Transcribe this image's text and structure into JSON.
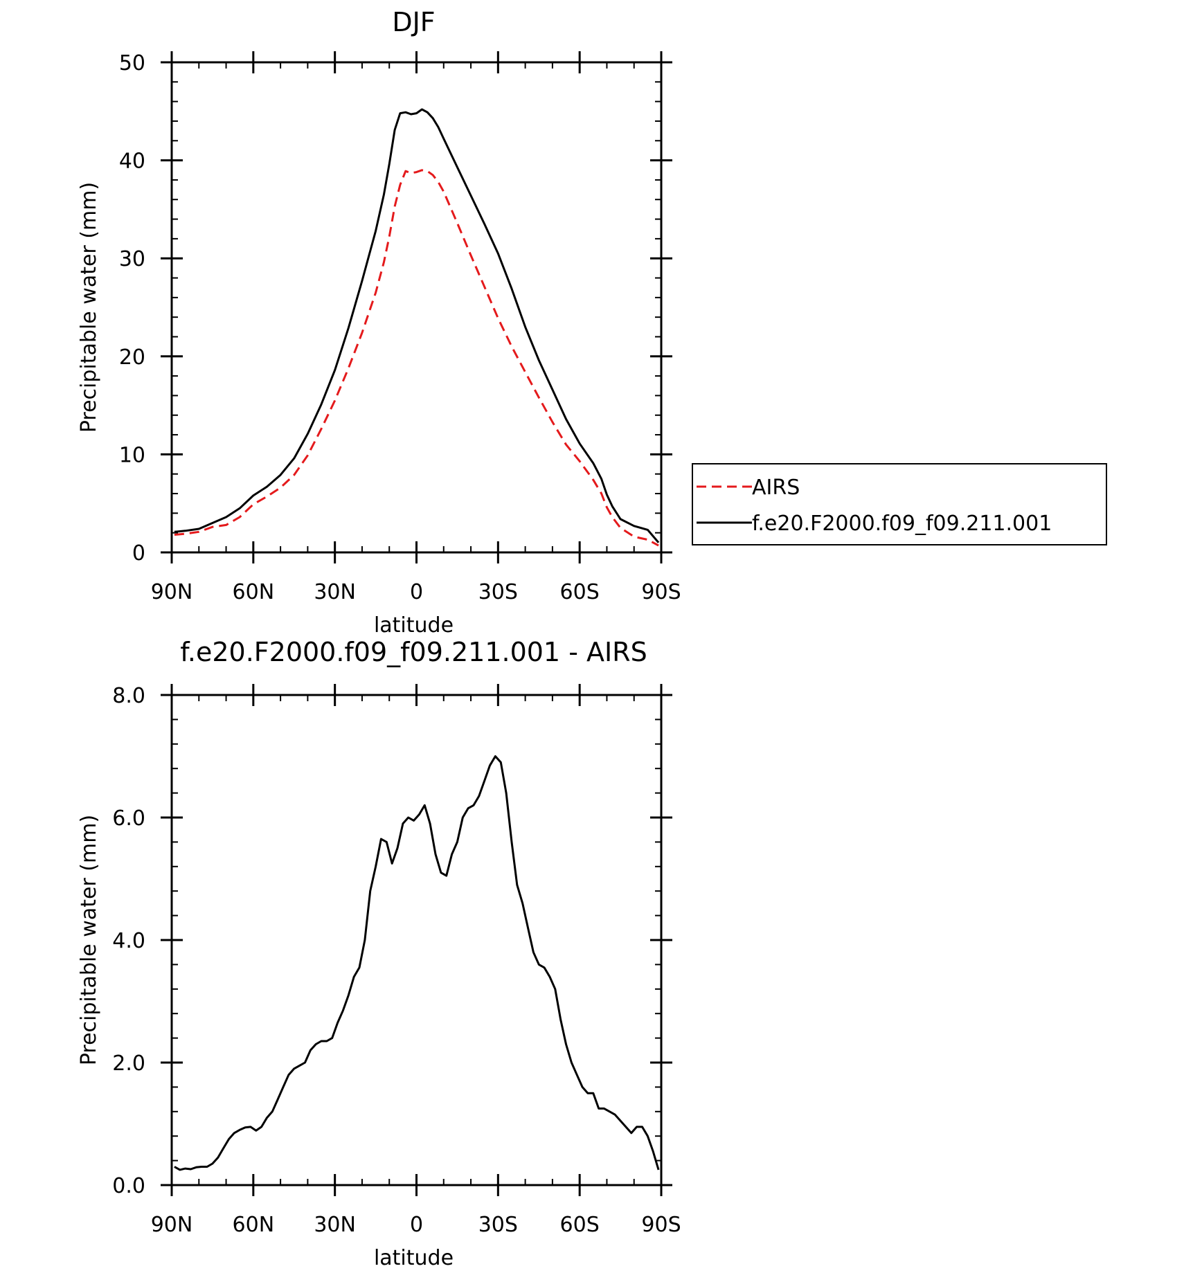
{
  "colors": {
    "airs": "#e41a1c",
    "model": "#000000",
    "axis": "#000000"
  },
  "chart_data": [
    {
      "type": "line",
      "title": "DJF",
      "xlabel": "latitude",
      "ylabel": "Precipitable water (mm)",
      "xlim": [
        90,
        -90
      ],
      "ylim": [
        0,
        50
      ],
      "yticks": [
        "0",
        "10",
        "20",
        "30",
        "40",
        "50"
      ],
      "ytick_values": [
        0,
        10,
        20,
        30,
        40,
        50
      ],
      "xticks": [
        "90N",
        "60N",
        "30N",
        "0",
        "30S",
        "60S",
        "90S"
      ],
      "xtick_values": [
        90,
        60,
        30,
        0,
        -30,
        -60,
        -90
      ],
      "legend": {
        "placement": "right",
        "entries": [
          "AIRS",
          "f.e20.F2000.f09_f09.211.001"
        ]
      },
      "series": [
        {
          "name": "AIRS",
          "style": "dashed",
          "color": "#e41a1c",
          "x": [
            89,
            85,
            80,
            75,
            70,
            65,
            60,
            55,
            50,
            45,
            40,
            35,
            30,
            25,
            20,
            15,
            12,
            10,
            8,
            6,
            4,
            2,
            0,
            -2,
            -4,
            -6,
            -8,
            -10,
            -15,
            -20,
            -25,
            -30,
            -35,
            -40,
            -45,
            -50,
            -55,
            -60,
            -65,
            -68,
            -70,
            -72,
            -75,
            -80,
            -85,
            -89
          ],
          "y": [
            1.8,
            1.9,
            2.1,
            2.6,
            2.8,
            3.6,
            4.9,
            5.7,
            6.6,
            7.9,
            9.9,
            12.6,
            15.5,
            18.8,
            22.4,
            26.5,
            29.6,
            32.2,
            35.3,
            37.5,
            38.9,
            38.7,
            38.8,
            39.0,
            38.9,
            38.5,
            37.8,
            36.8,
            33.6,
            30.3,
            27.1,
            23.9,
            21.0,
            18.4,
            15.8,
            13.3,
            11.0,
            9.3,
            7.4,
            6.0,
            4.6,
            3.6,
            2.5,
            1.6,
            1.3,
            0.7
          ]
        },
        {
          "name": "f.e20.F2000.f09_f09.211.001",
          "style": "solid",
          "color": "#000000",
          "x": [
            89,
            85,
            80,
            75,
            70,
            65,
            60,
            55,
            50,
            45,
            40,
            35,
            30,
            25,
            20,
            15,
            12,
            10,
            8,
            6,
            4,
            2,
            0,
            -2,
            -4,
            -6,
            -8,
            -10,
            -15,
            -20,
            -25,
            -30,
            -35,
            -40,
            -45,
            -50,
            -55,
            -60,
            -65,
            -68,
            -70,
            -72,
            -75,
            -80,
            -85,
            -89
          ],
          "y": [
            2.1,
            2.2,
            2.4,
            3.0,
            3.6,
            4.5,
            5.8,
            6.7,
            7.9,
            9.6,
            12.1,
            15.1,
            18.6,
            22.9,
            27.7,
            32.8,
            36.5,
            39.6,
            43.1,
            44.8,
            44.9,
            44.7,
            44.8,
            45.2,
            44.9,
            44.3,
            43.4,
            42.2,
            39.3,
            36.4,
            33.5,
            30.5,
            26.9,
            23.0,
            19.6,
            16.6,
            13.6,
            11.1,
            9.1,
            7.5,
            5.9,
            4.7,
            3.4,
            2.7,
            2.3,
            1.0
          ]
        }
      ]
    },
    {
      "type": "line",
      "title": "f.e20.F2000.f09_f09.211.001  -  AIRS",
      "xlabel": "latitude",
      "ylabel": "Precipitable water (mm)",
      "xlim": [
        90,
        -90
      ],
      "ylim": [
        0,
        8
      ],
      "yticks": [
        "0.0",
        "2.0",
        "4.0",
        "6.0",
        "8.0"
      ],
      "ytick_values": [
        0,
        2,
        4,
        6,
        8
      ],
      "xticks": [
        "90N",
        "60N",
        "30N",
        "0",
        "30S",
        "60S",
        "90S"
      ],
      "xtick_values": [
        90,
        60,
        30,
        0,
        -30,
        -60,
        -90
      ],
      "series": [
        {
          "style": "solid",
          "color": "#000000",
          "x": [
            89,
            87,
            85,
            83,
            81,
            79,
            77,
            75,
            73,
            71,
            69,
            67,
            65,
            63,
            61,
            59,
            57,
            55,
            53,
            51,
            49,
            47,
            45,
            43,
            41,
            39,
            37,
            35,
            33,
            31,
            29,
            27,
            25,
            23,
            21,
            19,
            17,
            15,
            13,
            11,
            9,
            7,
            5,
            3,
            1,
            -1,
            -3,
            -5,
            -7,
            -9,
            -11,
            -13,
            -15,
            -17,
            -19,
            -21,
            -23,
            -25,
            -27,
            -29,
            -31,
            -33,
            -35,
            -37,
            -39,
            -41,
            -43,
            -45,
            -47,
            -49,
            -51,
            -53,
            -55,
            -57,
            -59,
            -61,
            -63,
            -65,
            -67,
            -69,
            -71,
            -73,
            -75,
            -77,
            -79,
            -81,
            -83,
            -85,
            -87,
            -89
          ],
          "y": [
            0.3,
            0.25,
            0.27,
            0.26,
            0.29,
            0.3,
            0.3,
            0.35,
            0.45,
            0.6,
            0.75,
            0.85,
            0.9,
            0.94,
            0.95,
            0.89,
            0.95,
            1.1,
            1.2,
            1.4,
            1.6,
            1.8,
            1.9,
            1.95,
            2.0,
            2.2,
            2.3,
            2.35,
            2.35,
            2.4,
            2.65,
            2.85,
            3.1,
            3.4,
            3.55,
            4.0,
            4.8,
            5.2,
            5.65,
            5.6,
            5.25,
            5.5,
            5.9,
            6.0,
            5.95,
            6.05,
            6.2,
            5.9,
            5.4,
            5.1,
            5.05,
            5.4,
            5.6,
            6.0,
            6.15,
            6.2,
            6.35,
            6.6,
            6.85,
            7.0,
            6.9,
            6.4,
            5.6,
            4.9,
            4.6,
            4.2,
            3.8,
            3.6,
            3.55,
            3.4,
            3.2,
            2.7,
            2.3,
            2.0,
            1.8,
            1.6,
            1.5,
            1.5,
            1.25,
            1.25,
            1.2,
            1.15,
            1.05,
            0.95,
            0.85,
            0.95,
            0.95,
            0.8,
            0.55,
            0.25
          ]
        }
      ]
    }
  ]
}
